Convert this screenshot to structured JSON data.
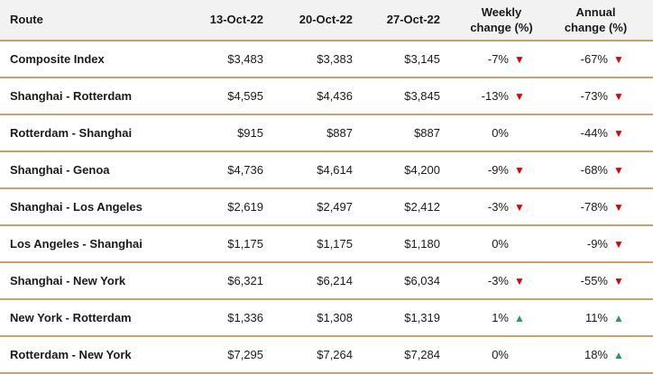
{
  "headers": {
    "route": "Route",
    "d1": "13-Oct-22",
    "d2": "20-Oct-22",
    "d3": "27-Oct-22",
    "weekly_line1": "Weekly",
    "weekly_line2": "change (%)",
    "annual_line1": "Annual",
    "annual_line2": "change (%)"
  },
  "rows": [
    {
      "route": "Composite Index",
      "d1": "$3,483",
      "d2": "$3,383",
      "d3": "$3,145",
      "weekly": "-7%",
      "weekly_dir": "down",
      "annual": "-67%",
      "annual_dir": "down"
    },
    {
      "route": "Shanghai - Rotterdam",
      "d1": "$4,595",
      "d2": "$4,436",
      "d3": "$3,845",
      "weekly": "-13%",
      "weekly_dir": "down",
      "annual": "-73%",
      "annual_dir": "down"
    },
    {
      "route": "Rotterdam - Shanghai",
      "d1": "$915",
      "d2": "$887",
      "d3": "$887",
      "weekly": "0%",
      "weekly_dir": "none",
      "annual": "-44%",
      "annual_dir": "down"
    },
    {
      "route": "Shanghai - Genoa",
      "d1": "$4,736",
      "d2": "$4,614",
      "d3": "$4,200",
      "weekly": "-9%",
      "weekly_dir": "down",
      "annual": "-68%",
      "annual_dir": "down"
    },
    {
      "route": "Shanghai - Los Angeles",
      "d1": "$2,619",
      "d2": "$2,497",
      "d3": "$2,412",
      "weekly": "-3%",
      "weekly_dir": "down",
      "annual": "-78%",
      "annual_dir": "down"
    },
    {
      "route": "Los Angeles - Shanghai",
      "d1": "$1,175",
      "d2": "$1,175",
      "d3": "$1,180",
      "weekly": "0%",
      "weekly_dir": "none",
      "annual": "-9%",
      "annual_dir": "down"
    },
    {
      "route": "Shanghai - New York",
      "d1": "$6,321",
      "d2": "$6,214",
      "d3": "$6,034",
      "weekly": "-3%",
      "weekly_dir": "down",
      "annual": "-55%",
      "annual_dir": "down"
    },
    {
      "route": "New York - Rotterdam",
      "d1": "$1,336",
      "d2": "$1,308",
      "d3": "$1,319",
      "weekly": "1%",
      "weekly_dir": "up",
      "annual": "11%",
      "annual_dir": "up"
    },
    {
      "route": "Rotterdam - New York",
      "d1": "$7,295",
      "d2": "$7,264",
      "d3": "$7,284",
      "weekly": "0%",
      "weekly_dir": "none",
      "annual": "18%",
      "annual_dir": "up"
    }
  ],
  "colors": {
    "down": "#e00000",
    "up": "#22a05a",
    "divider": "#c8a26a",
    "header_bg": "#f2f2f2"
  },
  "icons": {
    "down": "triangle-down-icon",
    "up": "triangle-up-icon"
  }
}
